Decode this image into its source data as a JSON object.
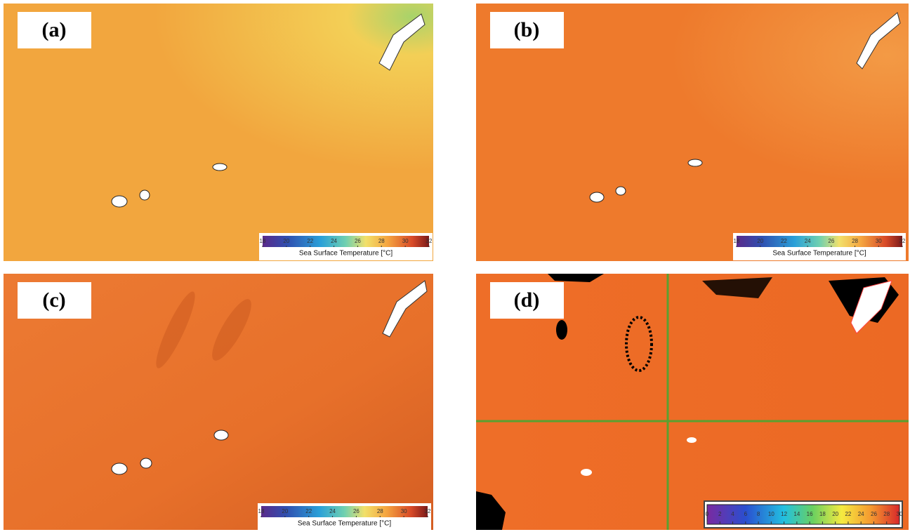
{
  "panels": [
    {
      "label": "(a)",
      "colorbar": {
        "lim": [
          18,
          32
        ],
        "ticks": [
          18,
          20,
          22,
          24,
          26,
          28,
          30,
          32
        ],
        "label": "Sea Surface Temperature [°C]"
      }
    },
    {
      "label": "(b)",
      "colorbar": {
        "lim": [
          18,
          32
        ],
        "ticks": [
          18,
          20,
          22,
          24,
          26,
          28,
          30,
          32
        ],
        "label": "Sea Surface Temperature [°C]"
      }
    },
    {
      "label": "(c)",
      "colorbar": {
        "lim": [
          18,
          32
        ],
        "ticks": [
          18,
          20,
          22,
          24,
          26,
          28,
          30,
          32
        ],
        "label": "Sea Surface Temperature [°C]"
      }
    },
    {
      "label": "(d)",
      "colorbar": {
        "lim": [
          0,
          30
        ],
        "ticks": [
          0,
          2,
          4,
          6,
          8,
          10,
          12,
          14,
          16,
          18,
          20,
          22,
          24,
          26,
          28,
          30
        ]
      }
    }
  ]
}
